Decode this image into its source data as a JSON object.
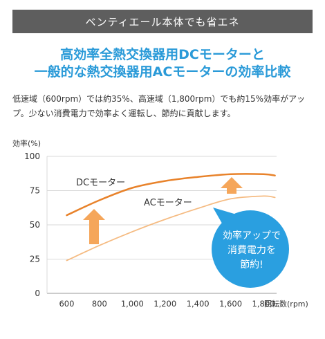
{
  "banner": {
    "text": "ベンティエール本体でも省エネ"
  },
  "headline": {
    "line1": "高効率全熱交換器用DCモーターと",
    "line2": "一般的な熱交換器用ACモーターの効率比較"
  },
  "description": {
    "line1": "低速域（600rpm）では約35%、高速域（1,800rpm）でも約15%効率がアッ",
    "line2": "プ。少ない消費電力で効率よく運転し、節約に貢献します。"
  },
  "callout": {
    "line1": "効率アップで",
    "line2": "消費電力を",
    "line3": "節約!",
    "color": "#2a9fe0"
  },
  "chart_data": {
    "type": "line",
    "ylabel": "効率(%)",
    "xlabel": "回転数(rpm)",
    "yticks": [
      "0",
      "25",
      "50",
      "75",
      "100"
    ],
    "ylim": [
      0,
      100
    ],
    "xlim": [
      480,
      1880
    ],
    "xticks": [
      "600",
      "800",
      "1,000",
      "1,200",
      "1,400",
      "1,600",
      "1,800"
    ],
    "x": [
      600,
      800,
      1000,
      1200,
      1400,
      1600,
      1800,
      1870
    ],
    "series": [
      {
        "name": "DCモーター",
        "color": "#e8822a",
        "values": [
          57,
          68,
          77,
          82,
          85,
          87,
          87,
          86
        ]
      },
      {
        "name": "ACモーター",
        "color": "#f5bb82",
        "values": [
          24,
          35,
          45,
          54,
          62,
          69,
          71,
          70
        ]
      }
    ],
    "arrow_color": "#f5a65a",
    "grid": true
  }
}
